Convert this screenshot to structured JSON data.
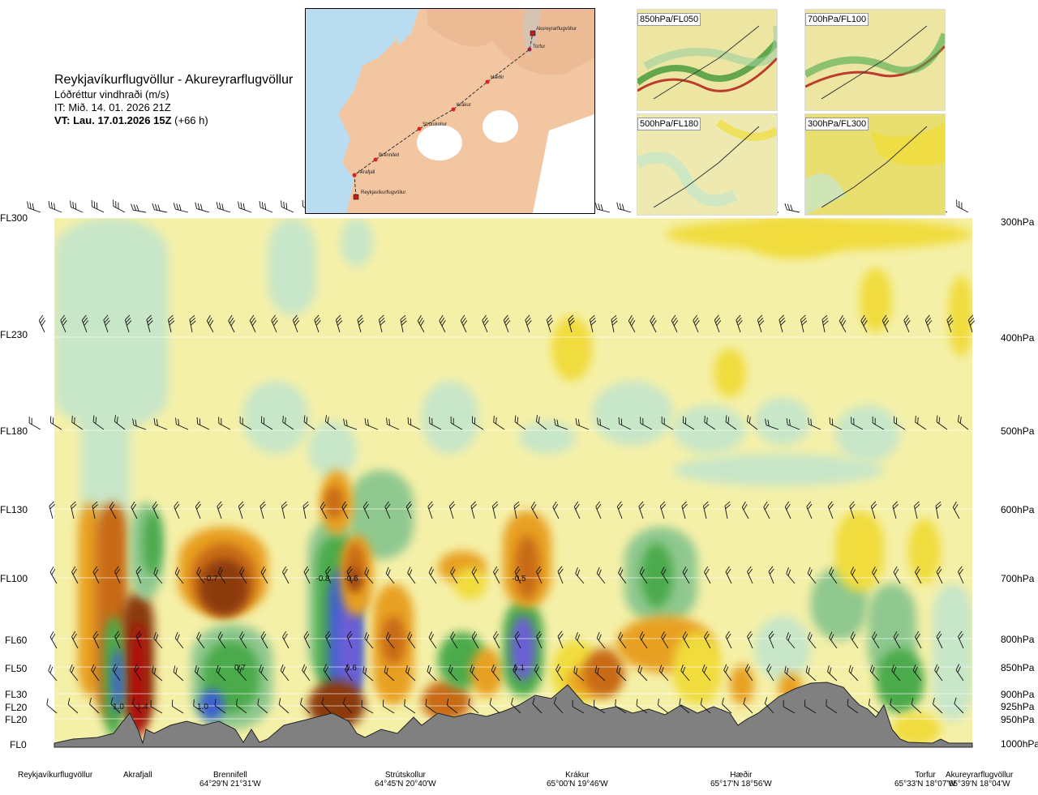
{
  "header": {
    "route": "Reykjavíkurflugvöllur - Akureyrarflugvöllur",
    "variable": "Lóðréttur vindhraði (m/s)",
    "issue_time": "IT: Mið. 14. 01. 2026 21Z",
    "valid_time": "VT: Lau. 17.01.2026 15Z",
    "lead_time": "(+66 h)"
  },
  "route_map": {
    "waypoints": [
      "Reykjavíkurflugvöllur",
      "Akrafjall",
      "Brennifell",
      "Strútskollur",
      "Krákur",
      "Hæðir",
      "Torfur",
      "Akureyrarflugvöllur"
    ]
  },
  "mini_maps": [
    "850hPa/FL050",
    "700hPa/FL100",
    "500hPa/FL180",
    "300hPa/FL300"
  ],
  "levels": [
    {
      "fl": "FL300",
      "hpa": "300hPa"
    },
    {
      "fl": "FL230",
      "hpa": "400hPa"
    },
    {
      "fl": "FL180",
      "hpa": "500hPa"
    },
    {
      "fl": "FL130",
      "hpa": "600hPa"
    },
    {
      "fl": "FL100",
      "hpa": "700hPa"
    },
    {
      "fl": "FL60",
      "hpa": "800hPa"
    },
    {
      "fl": "FL50",
      "hpa": "850hPa"
    },
    {
      "fl": "FL30",
      "hpa": "900hPa"
    },
    {
      "fl": "FL20",
      "hpa": "925hPa"
    },
    {
      "fl": "FL20",
      "hpa": "950hPa"
    },
    {
      "fl": "FL0",
      "hpa": "1000hPa"
    }
  ],
  "locations": [
    {
      "name": "Reykjavíkurflugvöllur",
      "coord": ""
    },
    {
      "name": "Akrafjall",
      "coord": ""
    },
    {
      "name": "Brennifell",
      "coord": "64°29'N 21°31'W"
    },
    {
      "name": "Strútskollur",
      "coord": "64°45'N 20°40'W"
    },
    {
      "name": "Krákur",
      "coord": "65°00'N 19°46'W"
    },
    {
      "name": "Hæðir",
      "coord": "65°17'N 18°56'W"
    },
    {
      "name": "Torfur",
      "coord": "65°33'N 18°07'W"
    },
    {
      "name": "Akureyrarflugvöllur",
      "coord": "65°39'N 18°04'W"
    }
  ],
  "colors": {
    "strong_down_blue": "#6a5fd6",
    "down_blue": "#3c60d0",
    "down_green_dark": "#2a8a2a",
    "down_green": "#4caa4c",
    "down_green_mid": "#8fc88f",
    "down_green_light": "#c8e6c8",
    "near_zero": "#ffffff",
    "up_pale": "#f5f0a8",
    "up_yellow": "#f0dc3c",
    "up_orange": "#e8a020",
    "up_brown": "#c86a14",
    "up_darkbrown": "#8c3a0a",
    "up_red": "#b01010",
    "terrain": "#808080"
  },
  "chart_data": {
    "type": "heatmap",
    "title": "Lóðréttur vindhraði (m/s)",
    "xlabel": "",
    "ylabel": "",
    "x_categories": [
      "Reykjavíkurflugvöllur",
      "Akrafjall",
      "Brennifell",
      "Strútskollur",
      "Krákur",
      "Hæðir",
      "Torfur",
      "Akureyrarflugvöllur"
    ],
    "y_levels_hpa": [
      300,
      400,
      500,
      600,
      700,
      800,
      850,
      900,
      925,
      950,
      1000
    ],
    "value_labels": [
      {
        "text": "-0.7",
        "location": "Brennifell",
        "level_hpa": 700
      },
      {
        "text": "-0.8",
        "location": "Strútskollur",
        "level_hpa": 700
      },
      {
        "text": "-0.6",
        "location": "Strútskollur",
        "level_hpa": 700
      },
      {
        "text": "-0.5",
        "location": "Krákur",
        "level_hpa": 700
      },
      {
        "text": "0.7",
        "location": "Brennifell",
        "level_hpa": 850
      },
      {
        "text": "1.6",
        "location": "Strútskollur",
        "level_hpa": 850
      },
      {
        "text": "1.1",
        "location": "Krákur",
        "level_hpa": 850
      },
      {
        "text": "1.0",
        "location": "Akrafjall",
        "level_hpa": 925
      },
      {
        "text": "-1.4",
        "location": "Akrafjall",
        "level_hpa": 925
      },
      {
        "text": "1.0",
        "location": "Brennifell",
        "level_hpa": 925
      }
    ],
    "grid": true,
    "legend": "none"
  }
}
